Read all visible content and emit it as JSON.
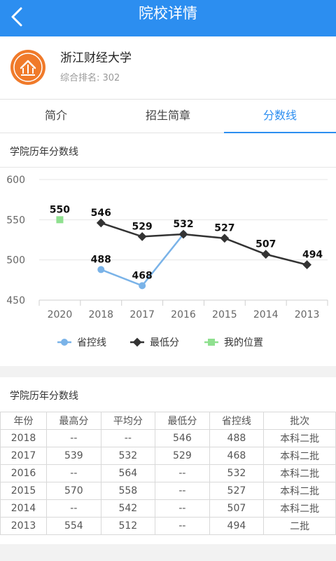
{
  "header": {
    "title": "院校详情"
  },
  "school": {
    "name": "浙江财经大学",
    "rank": "综合排名: 302"
  },
  "tabs": [
    {
      "label": "简介"
    },
    {
      "label": "招生简章"
    },
    {
      "label": "分数线"
    }
  ],
  "chart_section": {
    "title": "学院历年分数线"
  },
  "chart_data": {
    "type": "line",
    "x": [
      "2020",
      "2018",
      "2017",
      "2016",
      "2015",
      "2014",
      "2013"
    ],
    "ylim": [
      450,
      600
    ],
    "yticks": [
      "450",
      "500",
      "550",
      "600"
    ],
    "series": [
      {
        "name": "省控线",
        "color": "#7ab3e8",
        "values": [
          null,
          488,
          468,
          532,
          null,
          null,
          null
        ]
      },
      {
        "name": "最低分",
        "color": "#333333",
        "values": [
          null,
          546,
          529,
          532,
          527,
          507,
          494
        ]
      },
      {
        "name": "我的位置",
        "color": "#8fe08f",
        "values": [
          550,
          null,
          null,
          null,
          null,
          null,
          null
        ]
      }
    ],
    "data_labels": [
      {
        "x": "2020",
        "value": 550
      },
      {
        "x": "2018",
        "value": 546
      },
      {
        "x": "2018",
        "value": 488
      },
      {
        "x": "2017",
        "value": 529
      },
      {
        "x": "2017",
        "value": 468
      },
      {
        "x": "2016",
        "value": 532
      },
      {
        "x": "2015",
        "value": 527
      },
      {
        "x": "2014",
        "value": 507
      },
      {
        "x": "2013",
        "value": 494
      }
    ]
  },
  "table_section": {
    "title": "学院历年分数线",
    "headers": [
      "年份",
      "最高分",
      "平均分",
      "最低分",
      "省控线",
      "批次"
    ],
    "rows": [
      [
        "2018",
        "--",
        "--",
        "546",
        "488",
        "本科二批"
      ],
      [
        "2017",
        "539",
        "532",
        "529",
        "468",
        "本科二批"
      ],
      [
        "2016",
        "--",
        "564",
        "--",
        "532",
        "本科二批"
      ],
      [
        "2015",
        "570",
        "558",
        "--",
        "527",
        "本科二批"
      ],
      [
        "2014",
        "--",
        "542",
        "--",
        "507",
        "本科二批"
      ],
      [
        "2013",
        "554",
        "512",
        "--",
        "494",
        "二批"
      ]
    ]
  }
}
